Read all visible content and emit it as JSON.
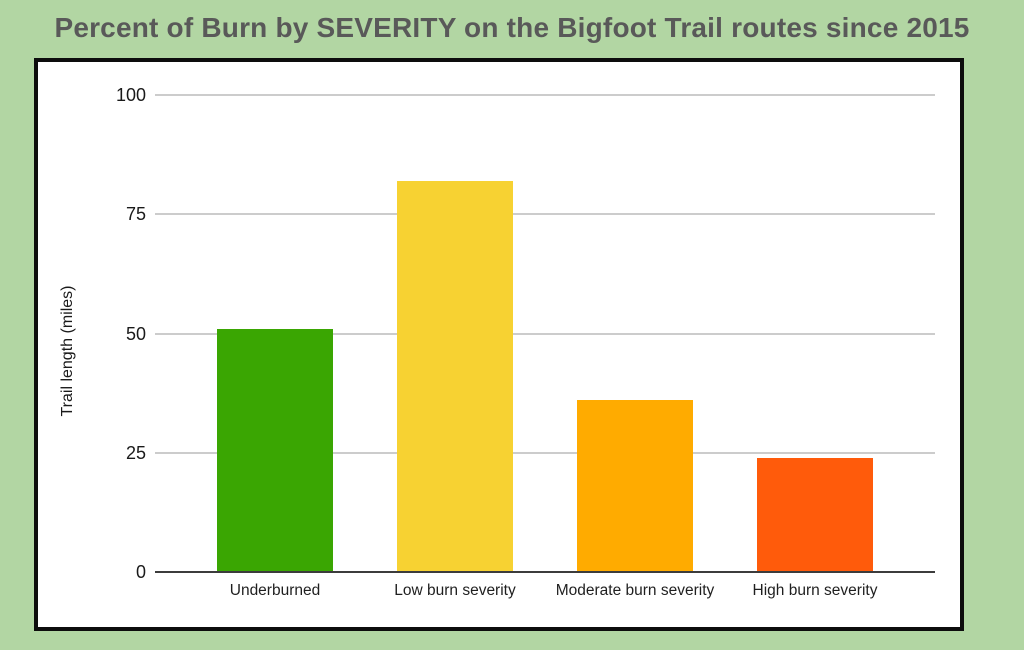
{
  "page": {
    "background_color": "#B2D6A3",
    "title_color": "#595959",
    "frame_border_color": "#0D0D0D",
    "gridline_color": "#CCCCCC",
    "axis_line_color": "#3C3C3C",
    "text_color": "#1A1A1A"
  },
  "chart_data": {
    "type": "bar",
    "title": "Percent of Burn by SEVERITY on the Bigfoot Trail routes since 2015",
    "categories": [
      "Underburned",
      "Low burn severity",
      "Moderate burn severity",
      "High burn severity"
    ],
    "values": [
      51,
      82,
      36,
      24
    ],
    "colors": [
      "#3AA602",
      "#F7D232",
      "#FFAB00",
      "#FF5B0B"
    ],
    "xlabel": "",
    "ylabel": "Trail length (miles)",
    "ylim": [
      0,
      100
    ],
    "yticks": [
      0,
      25,
      50,
      75,
      100
    ],
    "grid": "horizontal",
    "legend": "none"
  }
}
